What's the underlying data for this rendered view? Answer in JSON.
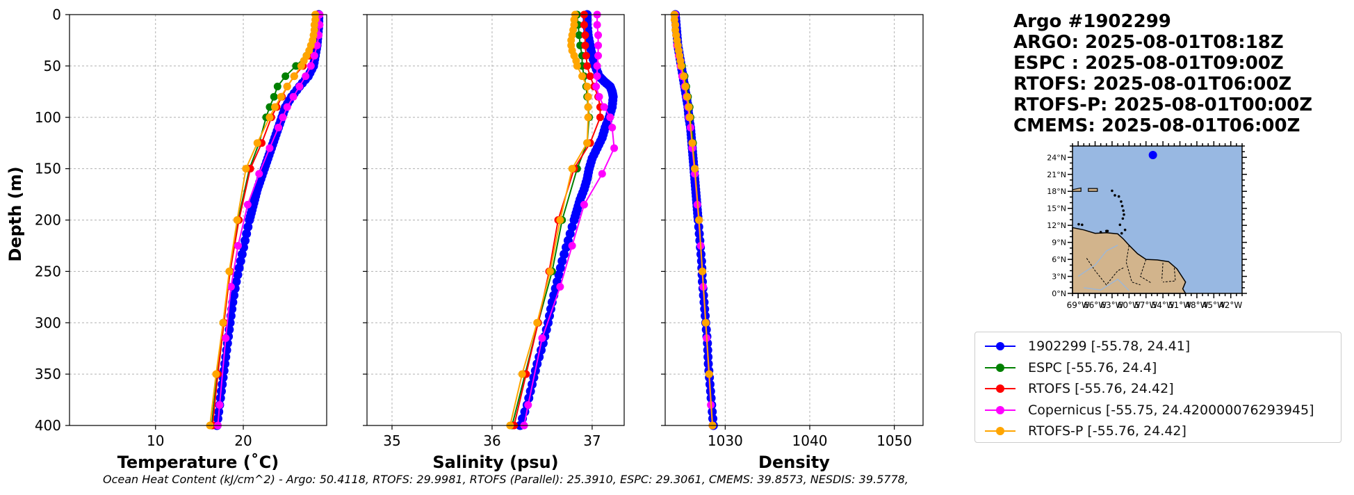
{
  "info": {
    "lines": [
      "Argo #1902299",
      "ARGO: 2025-08-01T08:18Z",
      "ESPC : 2025-08-01T09:00Z",
      "RTOFS: 2025-08-01T06:00Z",
      "RTOFS-P: 2025-08-01T00:00Z",
      "CMEMS: 2025-08-01T06:00Z"
    ]
  },
  "footer": {
    "text": "Ocean Heat Content (kJ/cm^2) - Argo: 50.4118,  RTOFS: 29.9981,  RTOFS (Parallel): 25.3910,  ESPC: 29.3061,  CMEMS: 39.8573,  NESDIS: 39.5778,"
  },
  "legend": [
    {
      "label": "1902299 [-55.78, 24.41]",
      "color": "#0000ff"
    },
    {
      "label": "ESPC [-55.76, 24.4]",
      "color": "#008000"
    },
    {
      "label": "RTOFS [-55.76, 24.42]",
      "color": "#ff0000"
    },
    {
      "label": "Copernicus [-55.75, 24.420000076293945]",
      "color": "#ff00ff"
    },
    {
      "label": "RTOFS-P [-55.76, 24.42]",
      "color": "#ffa500"
    }
  ],
  "chart_data": [
    {
      "type": "line",
      "id": "temperature",
      "xlabel": "Temperature (˚C)",
      "ylabel": "Depth (m)",
      "xlim": [
        0.2,
        29.5
      ],
      "ylim": [
        400,
        0
      ],
      "xticks": [
        10,
        20
      ],
      "yticks": [
        0,
        50,
        100,
        150,
        200,
        250,
        300,
        350,
        400
      ],
      "grid": true,
      "series": [
        {
          "name": "1902299",
          "color": "#0000ff",
          "marker_every": 1,
          "depth": [
            0,
            10,
            20,
            30,
            40,
            50,
            60,
            70,
            80,
            90,
            100,
            110,
            120,
            130,
            140,
            150,
            160,
            170,
            180,
            190,
            200,
            220,
            240,
            260,
            280,
            300,
            320,
            340,
            360,
            380,
            400
          ],
          "values": [
            28.6,
            28.6,
            28.5,
            28.4,
            28.2,
            28.0,
            27.4,
            26.4,
            25.5,
            24.8,
            24.4,
            24.0,
            23.6,
            23.2,
            22.8,
            22.4,
            22.0,
            21.6,
            21.3,
            21.0,
            20.7,
            20.2,
            19.7,
            19.2,
            18.8,
            18.5,
            18.2,
            17.9,
            17.6,
            17.3,
            17.0
          ]
        },
        {
          "name": "ESPC",
          "color": "#008000",
          "depth": [
            0,
            10,
            20,
            30,
            40,
            50,
            60,
            70,
            80,
            90,
            100,
            125,
            150,
            200,
            250,
            300,
            350,
            400
          ],
          "values": [
            28.3,
            28.3,
            28.2,
            27.9,
            27.2,
            26.0,
            24.8,
            23.9,
            23.5,
            23.0,
            22.6,
            21.8,
            20.7,
            19.4,
            18.5,
            17.7,
            17.0,
            16.4
          ]
        },
        {
          "name": "RTOFS",
          "color": "#ff0000",
          "depth": [
            0,
            10,
            20,
            30,
            40,
            50,
            60,
            70,
            80,
            90,
            100,
            125,
            150,
            200,
            250,
            300,
            350,
            400
          ],
          "values": [
            28.4,
            28.3,
            28.2,
            27.9,
            27.5,
            26.8,
            25.8,
            25.0,
            24.4,
            23.8,
            23.2,
            22.1,
            20.8,
            19.5,
            18.5,
            17.8,
            17.1,
            16.5
          ]
        },
        {
          "name": "Copernicus",
          "color": "#ff00ff",
          "depth": [
            0,
            10,
            20,
            30,
            40,
            50,
            60,
            70,
            80,
            90,
            100,
            110,
            130,
            155,
            185,
            225,
            265,
            315,
            380,
            400
          ],
          "values": [
            28.7,
            28.7,
            28.6,
            28.4,
            28.1,
            27.7,
            27.1,
            26.4,
            25.7,
            25.0,
            24.5,
            24.0,
            23.0,
            21.8,
            20.5,
            19.4,
            18.6,
            18.0,
            17.3,
            17.1
          ]
        },
        {
          "name": "RTOFS-P",
          "color": "#ffa500",
          "depth": [
            0,
            5,
            10,
            15,
            20,
            25,
            30,
            35,
            40,
            45,
            50,
            60,
            70,
            80,
            90,
            100,
            125,
            150,
            200,
            250,
            300,
            350,
            400
          ],
          "values": [
            28.2,
            28.2,
            28.1,
            28.1,
            28.0,
            27.9,
            27.7,
            27.5,
            27.2,
            26.9,
            26.6,
            25.8,
            25.0,
            24.3,
            23.6,
            23.0,
            21.6,
            20.3,
            19.3,
            18.4,
            17.7,
            16.9,
            16.2
          ]
        }
      ]
    },
    {
      "type": "line",
      "id": "salinity",
      "xlabel": "Salinity (psu)",
      "ylabel": "",
      "xlim": [
        34.75,
        37.32
      ],
      "ylim": [
        400,
        0
      ],
      "xticks": [
        35,
        36,
        37
      ],
      "yticks": [
        0,
        50,
        100,
        150,
        200,
        250,
        300,
        350,
        400
      ],
      "grid": true,
      "series": [
        {
          "name": "1902299",
          "color": "#0000ff",
          "marker_every": 1,
          "depth": [
            0,
            10,
            20,
            30,
            40,
            50,
            60,
            65,
            70,
            75,
            80,
            90,
            100,
            110,
            120,
            130,
            140,
            150,
            160,
            170,
            180,
            190,
            200,
            220,
            240,
            260,
            280,
            300,
            320,
            340,
            360,
            380,
            400
          ],
          "values": [
            36.95,
            36.95,
            36.96,
            36.98,
            37.0,
            37.03,
            37.07,
            37.12,
            37.18,
            37.2,
            37.21,
            37.2,
            37.17,
            37.13,
            37.1,
            37.05,
            37.0,
            36.97,
            36.95,
            36.92,
            36.88,
            36.85,
            36.82,
            36.76,
            36.7,
            36.65,
            36.6,
            36.56,
            36.51,
            36.45,
            36.4,
            36.35,
            36.28
          ]
        },
        {
          "name": "ESPC",
          "color": "#008000",
          "depth": [
            0,
            10,
            20,
            30,
            40,
            50,
            60,
            70,
            80,
            90,
            100,
            125,
            150,
            200,
            250,
            300,
            350,
            400
          ],
          "values": [
            36.85,
            36.86,
            36.87,
            36.88,
            36.9,
            36.9,
            36.92,
            36.94,
            36.95,
            36.96,
            36.97,
            36.95,
            36.85,
            36.7,
            36.6,
            36.46,
            36.33,
            36.2
          ]
        },
        {
          "name": "RTOFS",
          "color": "#ff0000",
          "depth": [
            0,
            10,
            20,
            30,
            40,
            50,
            60,
            70,
            80,
            90,
            100,
            125,
            150,
            200,
            250,
            300,
            350,
            400
          ],
          "values": [
            36.92,
            36.92,
            36.93,
            36.93,
            36.94,
            36.95,
            36.98,
            37.02,
            37.06,
            37.08,
            37.08,
            36.98,
            36.82,
            36.66,
            36.57,
            36.46,
            36.34,
            36.22
          ]
        },
        {
          "name": "Copernicus",
          "color": "#ff00ff",
          "depth": [
            0,
            10,
            20,
            30,
            40,
            50,
            60,
            70,
            80,
            90,
            100,
            110,
            130,
            155,
            185,
            225,
            265,
            315,
            380,
            400
          ],
          "values": [
            37.05,
            37.05,
            37.06,
            37.06,
            37.06,
            37.05,
            37.05,
            37.04,
            37.07,
            37.12,
            37.18,
            37.2,
            37.22,
            37.1,
            36.92,
            36.8,
            36.68,
            36.5,
            36.36,
            36.32
          ]
        },
        {
          "name": "RTOFS-P",
          "color": "#ffa500",
          "depth": [
            0,
            5,
            10,
            15,
            20,
            25,
            30,
            35,
            40,
            45,
            50,
            60,
            70,
            80,
            90,
            100,
            125,
            150,
            200,
            250,
            300,
            350,
            400
          ],
          "values": [
            36.83,
            36.82,
            36.82,
            36.81,
            36.8,
            36.79,
            36.79,
            36.8,
            36.82,
            36.84,
            36.85,
            36.9,
            36.95,
            36.96,
            36.96,
            36.96,
            36.95,
            36.8,
            36.68,
            36.58,
            36.45,
            36.3,
            36.18
          ]
        }
      ]
    },
    {
      "type": "line",
      "id": "density",
      "xlabel": "Density",
      "ylabel": "",
      "xlim": [
        1022.9,
        1053.4
      ],
      "ylim": [
        400,
        0
      ],
      "xticks": [
        1030,
        1040,
        1050
      ],
      "yticks": [
        0,
        50,
        100,
        150,
        200,
        250,
        300,
        350,
        400
      ],
      "grid": true,
      "series": [
        {
          "name": "1902299",
          "color": "#0000ff",
          "marker_every": 1,
          "depth": [
            0,
            10,
            20,
            30,
            40,
            50,
            60,
            70,
            80,
            90,
            100,
            110,
            120,
            130,
            140,
            150,
            160,
            170,
            180,
            190,
            200,
            220,
            240,
            260,
            280,
            300,
            320,
            340,
            360,
            380,
            400
          ],
          "values": [
            1024.1,
            1024.2,
            1024.3,
            1024.4,
            1024.6,
            1024.8,
            1025.0,
            1025.2,
            1025.4,
            1025.6,
            1025.7,
            1025.9,
            1026.0,
            1026.1,
            1026.2,
            1026.3,
            1026.4,
            1026.5,
            1026.6,
            1026.7,
            1026.8,
            1027.0,
            1027.2,
            1027.3,
            1027.5,
            1027.7,
            1027.9,
            1028.0,
            1028.2,
            1028.4,
            1028.6
          ]
        },
        {
          "name": "ESPC",
          "color": "#008000",
          "depth": [
            0,
            10,
            20,
            30,
            40,
            50,
            60,
            70,
            80,
            90,
            100,
            125,
            150,
            200,
            250,
            300,
            350,
            400
          ],
          "values": [
            1024.0,
            1024.1,
            1024.2,
            1024.4,
            1024.6,
            1024.9,
            1025.2,
            1025.4,
            1025.6,
            1025.8,
            1025.9,
            1026.2,
            1026.4,
            1026.9,
            1027.3,
            1027.7,
            1028.1,
            1028.5
          ]
        },
        {
          "name": "RTOFS",
          "color": "#ff0000",
          "depth": [
            0,
            10,
            20,
            30,
            40,
            50,
            60,
            70,
            80,
            90,
            100,
            125,
            150,
            200,
            250,
            300,
            350,
            400
          ],
          "values": [
            1024.0,
            1024.1,
            1024.2,
            1024.3,
            1024.5,
            1024.8,
            1025.1,
            1025.3,
            1025.5,
            1025.7,
            1025.8,
            1026.1,
            1026.4,
            1026.9,
            1027.3,
            1027.7,
            1028.1,
            1028.5
          ]
        },
        {
          "name": "Copernicus",
          "color": "#ff00ff",
          "depth": [
            0,
            10,
            20,
            30,
            40,
            50,
            60,
            70,
            80,
            90,
            100,
            110,
            130,
            155,
            185,
            225,
            265,
            315,
            380,
            400
          ],
          "values": [
            1024.1,
            1024.1,
            1024.2,
            1024.3,
            1024.5,
            1024.7,
            1024.9,
            1025.2,
            1025.4,
            1025.6,
            1025.7,
            1025.9,
            1026.1,
            1026.4,
            1026.7,
            1027.1,
            1027.4,
            1027.8,
            1028.3,
            1028.5
          ]
        },
        {
          "name": "RTOFS-P",
          "color": "#ffa500",
          "depth": [
            0,
            5,
            10,
            15,
            20,
            25,
            30,
            35,
            40,
            45,
            50,
            60,
            70,
            80,
            90,
            100,
            125,
            150,
            200,
            250,
            300,
            350,
            400
          ],
          "values": [
            1024.0,
            1024.0,
            1024.1,
            1024.1,
            1024.2,
            1024.3,
            1024.4,
            1024.5,
            1024.6,
            1024.7,
            1024.8,
            1025.1,
            1025.3,
            1025.5,
            1025.7,
            1025.8,
            1026.1,
            1026.4,
            1026.9,
            1027.3,
            1027.7,
            1028.1,
            1028.5
          ]
        }
      ]
    }
  ],
  "map": {
    "lat_labels": [
      "24°N",
      "21°N",
      "18°N",
      "15°N",
      "12°N",
      "9°N",
      "6°N",
      "3°N",
      "0°N"
    ],
    "lon_labels": [
      "69°W",
      "66°W",
      "63°W",
      "60°W",
      "57°W",
      "54°W",
      "51°W",
      "48°W",
      "45°W",
      "42°W"
    ],
    "lon_range": [
      -70,
      -40
    ],
    "lat_range": [
      0,
      26
    ],
    "float_lon": -55.78,
    "float_lat": 24.41,
    "ocean_color": "#98b8e2",
    "land_color": "#d2b48c",
    "float_color": "#0000ff"
  }
}
